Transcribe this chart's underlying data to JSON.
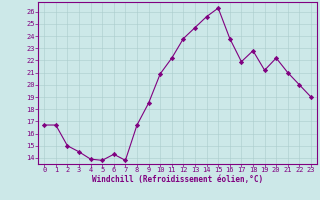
{
  "x": [
    0,
    1,
    2,
    3,
    4,
    5,
    6,
    7,
    8,
    9,
    10,
    11,
    12,
    13,
    14,
    15,
    16,
    17,
    18,
    19,
    20,
    21,
    22,
    23
  ],
  "y": [
    16.7,
    16.7,
    15.0,
    14.5,
    13.9,
    13.8,
    14.3,
    13.8,
    16.7,
    18.5,
    20.9,
    22.2,
    23.8,
    24.7,
    25.6,
    26.3,
    23.8,
    21.9,
    22.8,
    21.2,
    22.2,
    21.0,
    20.0,
    19.0
  ],
  "line_color": "#800080",
  "marker": "D",
  "marker_size": 2.2,
  "bg_color": "#cce8e8",
  "grid_color": "#aacccc",
  "xlabel": "Windchill (Refroidissement éolien,°C)",
  "ylabel": "",
  "ylim": [
    13.5,
    26.8
  ],
  "ytick_min": 14,
  "ytick_max": 26,
  "xticks": [
    0,
    1,
    2,
    3,
    4,
    5,
    6,
    7,
    8,
    9,
    10,
    11,
    12,
    13,
    14,
    15,
    16,
    17,
    18,
    19,
    20,
    21,
    22,
    23
  ],
  "tick_color": "#800080",
  "label_color": "#800080",
  "spine_color": "#800080",
  "tick_fontsize": 5.0,
  "xlabel_fontsize": 5.5
}
